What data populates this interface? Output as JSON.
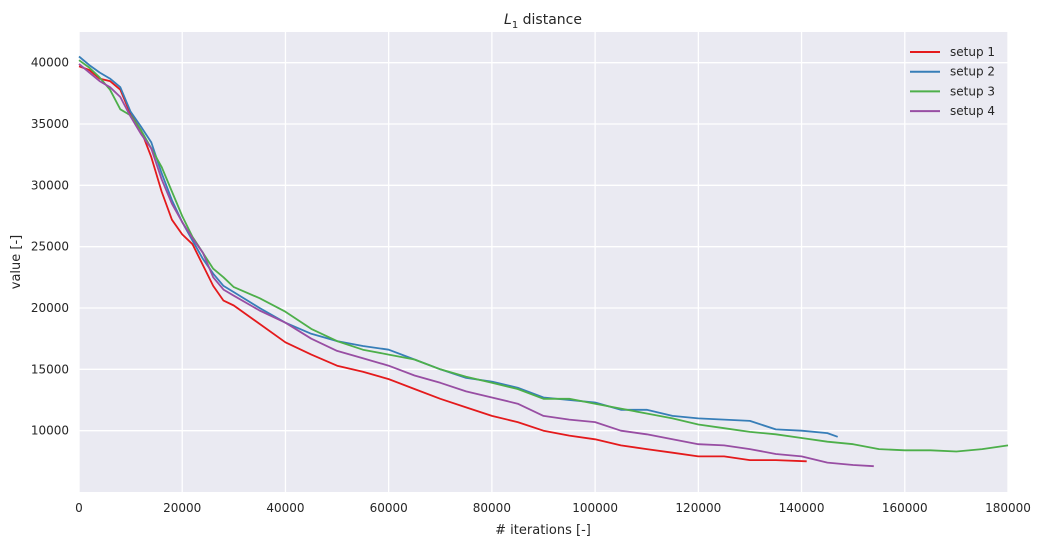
{
  "chart_data": {
    "type": "line",
    "title": "L",
    "title_subscript": "1",
    "title_suffix": " distance",
    "xlabel": "# iterations [-]",
    "ylabel": "value [-]",
    "xlim": [
      0,
      180000
    ],
    "ylim": [
      5000,
      42500
    ],
    "xticks": [
      0,
      20000,
      40000,
      60000,
      80000,
      100000,
      120000,
      140000,
      160000,
      180000
    ],
    "xtick_labels": [
      "0",
      "20000",
      "40000",
      "60000",
      "80000",
      "100000",
      "120000",
      "140000",
      "160000",
      "180000"
    ],
    "yticks": [
      10000,
      15000,
      20000,
      25000,
      30000,
      35000,
      40000
    ],
    "ytick_labels": [
      "10000",
      "15000",
      "20000",
      "25000",
      "30000",
      "35000",
      "40000"
    ],
    "grid": true,
    "background": "#eaeaf2",
    "legend_position": "top-right",
    "series": [
      {
        "name": "setup 1",
        "color": "#e41a1c",
        "x": [
          0,
          2000,
          4000,
          6000,
          8000,
          10000,
          12000,
          14000,
          16000,
          18000,
          20000,
          22000,
          24000,
          26000,
          28000,
          30000,
          35000,
          40000,
          45000,
          50000,
          55000,
          60000,
          65000,
          70000,
          75000,
          80000,
          85000,
          90000,
          95000,
          100000,
          105000,
          110000,
          115000,
          120000,
          125000,
          130000,
          135000,
          141000
        ],
        "y": [
          39700,
          39400,
          38700,
          38500,
          37800,
          35800,
          34500,
          32300,
          29500,
          27200,
          26000,
          25200,
          23500,
          21800,
          20600,
          20200,
          18700,
          17200,
          16200,
          15300,
          14800,
          14200,
          13400,
          12600,
          11900,
          11200,
          10700,
          10000,
          9600,
          9300,
          8800,
          8500,
          8200,
          7900,
          7900,
          7600,
          7600,
          7500
        ]
      },
      {
        "name": "setup 2",
        "color": "#377eb8",
        "x": [
          0,
          2000,
          4000,
          6000,
          8000,
          10000,
          12000,
          14000,
          16000,
          18000,
          20000,
          22000,
          24000,
          26000,
          28000,
          30000,
          35000,
          40000,
          45000,
          50000,
          55000,
          60000,
          65000,
          70000,
          75000,
          80000,
          85000,
          90000,
          95000,
          100000,
          105000,
          110000,
          115000,
          120000,
          125000,
          130000,
          135000,
          140000,
          145000,
          147000
        ],
        "y": [
          40500,
          39800,
          39200,
          38700,
          38000,
          36000,
          34800,
          33500,
          31000,
          28800,
          27000,
          25500,
          24000,
          22800,
          21800,
          21300,
          20000,
          18800,
          17900,
          17300,
          16900,
          16600,
          15800,
          15000,
          14300,
          14000,
          13500,
          12700,
          12500,
          12300,
          11700,
          11700,
          11200,
          11000,
          10900,
          10800,
          10100,
          10000,
          9800,
          9500
        ]
      },
      {
        "name": "setup 3",
        "color": "#4daf4a",
        "x": [
          0,
          2000,
          4000,
          6000,
          8000,
          10000,
          12000,
          14000,
          16000,
          18000,
          20000,
          22000,
          24000,
          26000,
          28000,
          30000,
          35000,
          40000,
          45000,
          50000,
          55000,
          60000,
          65000,
          70000,
          75000,
          80000,
          85000,
          90000,
          95000,
          100000,
          105000,
          110000,
          115000,
          120000,
          125000,
          130000,
          135000,
          140000,
          145000,
          150000,
          155000,
          160000,
          165000,
          170000,
          175000,
          180000
        ],
        "y": [
          40200,
          39600,
          38800,
          37800,
          36200,
          35700,
          34500,
          33000,
          31500,
          29500,
          27500,
          25800,
          24500,
          23200,
          22500,
          21700,
          20800,
          19700,
          18300,
          17300,
          16600,
          16200,
          15800,
          15000,
          14400,
          13900,
          13400,
          12600,
          12600,
          12200,
          11800,
          11400,
          11000,
          10500,
          10200,
          9900,
          9700,
          9400,
          9100,
          8900,
          8500,
          8400,
          8400,
          8300,
          8500,
          8800
        ]
      },
      {
        "name": "setup 4",
        "color": "#984ea3",
        "x": [
          0,
          2000,
          4000,
          6000,
          8000,
          10000,
          12000,
          14000,
          16000,
          18000,
          20000,
          22000,
          24000,
          26000,
          28000,
          30000,
          35000,
          40000,
          45000,
          50000,
          55000,
          60000,
          65000,
          70000,
          75000,
          80000,
          85000,
          90000,
          95000,
          100000,
          105000,
          110000,
          115000,
          120000,
          125000,
          130000,
          135000,
          140000,
          145000,
          150000,
          154000
        ],
        "y": [
          39900,
          39200,
          38500,
          38000,
          37200,
          35600,
          34200,
          33000,
          30500,
          28500,
          27000,
          25700,
          24500,
          22500,
          21500,
          21000,
          19800,
          18800,
          17500,
          16500,
          15900,
          15300,
          14500,
          13900,
          13200,
          12700,
          12200,
          11200,
          10900,
          10700,
          10000,
          9700,
          9300,
          8900,
          8800,
          8500,
          8100,
          7900,
          7400,
          7200,
          7100
        ]
      }
    ]
  }
}
